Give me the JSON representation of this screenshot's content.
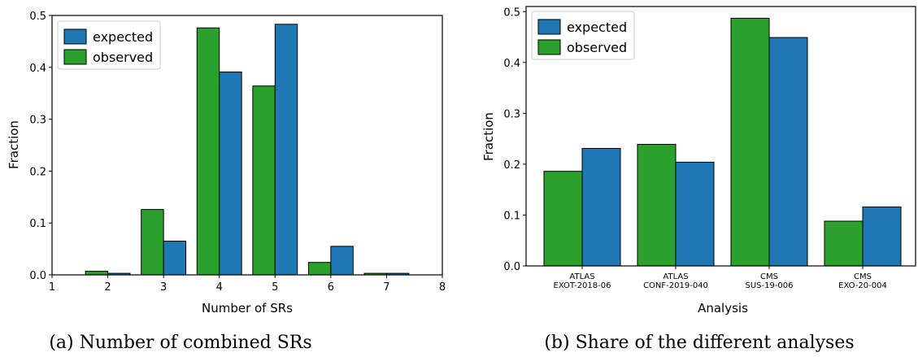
{
  "chart_data": [
    {
      "type": "bar",
      "caption": "(a) Number of combined SRs",
      "xlabel": "Number of SRs",
      "ylabel": "Fraction",
      "xlim": [
        1,
        8
      ],
      "ylim": [
        0,
        0.5
      ],
      "xticks": [
        "1",
        "2",
        "3",
        "4",
        "5",
        "6",
        "7",
        "8"
      ],
      "yticks": [
        "0.0",
        "0.1",
        "0.2",
        "0.3",
        "0.4",
        "0.5"
      ],
      "legend": {
        "position": "top-left",
        "entries": [
          "expected",
          "observed"
        ]
      },
      "categories": [
        1,
        2,
        3,
        4,
        5,
        6,
        7
      ],
      "series": [
        {
          "name": "observed",
          "color": "#2ca02c",
          "values": [
            0.0,
            0.007,
            0.126,
            0.476,
            0.364,
            0.024,
            0.003
          ]
        },
        {
          "name": "expected",
          "color": "#1f77b4",
          "values": [
            0.0,
            0.003,
            0.065,
            0.391,
            0.483,
            0.055,
            0.003
          ]
        }
      ]
    },
    {
      "type": "bar",
      "caption": "(b) Share of the different analyses",
      "xlabel": "Analysis",
      "ylabel": "Fraction",
      "ylim": [
        0,
        0.51
      ],
      "yticks": [
        "0.0",
        "0.1",
        "0.2",
        "0.3",
        "0.4",
        "0.5"
      ],
      "legend": {
        "position": "top-left",
        "entries": [
          "expected",
          "observed"
        ]
      },
      "categories": [
        [
          "ATLAS",
          "EXOT-2018-06"
        ],
        [
          "ATLAS",
          "CONF-2019-040"
        ],
        [
          "CMS",
          "SUS-19-006"
        ],
        [
          "CMS",
          "EXO-20-004"
        ]
      ],
      "series": [
        {
          "name": "observed",
          "color": "#2ca02c",
          "values": [
            0.186,
            0.239,
            0.487,
            0.088
          ]
        },
        {
          "name": "expected",
          "color": "#1f77b4",
          "values": [
            0.231,
            0.204,
            0.449,
            0.116
          ]
        }
      ]
    }
  ]
}
